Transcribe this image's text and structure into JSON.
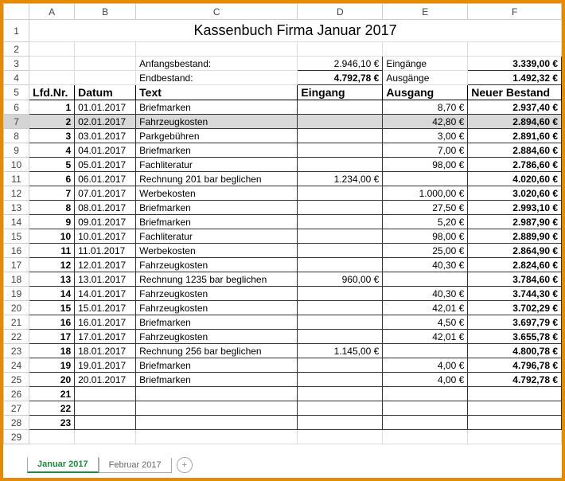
{
  "columns": [
    "A",
    "B",
    "C",
    "D",
    "E",
    "F"
  ],
  "title": "Kassenbuch Firma Januar 2017",
  "summary": {
    "anfangsbestand_label": "Anfangsbestand:",
    "anfangsbestand_value": "2.946,10 €",
    "eingaenge_label": "Eingänge",
    "eingaenge_value": "3.339,00 €",
    "endbestand_label": "Endbestand:",
    "endbestand_value": "4.792,78 €",
    "ausgaenge_label": "Ausgänge",
    "ausgaenge_value": "1.492,32 €"
  },
  "headers": {
    "lfdnr": "Lfd.Nr.",
    "datum": "Datum",
    "text": "Text",
    "eingang": "Eingang",
    "ausgang": "Ausgang",
    "bestand": "Neuer Bestand"
  },
  "rows": [
    {
      "n": "1",
      "d": "01.01.2017",
      "t": "Briefmarken",
      "e": "",
      "a": "8,70 €",
      "b": "2.937,40 €"
    },
    {
      "n": "2",
      "d": "02.01.2017",
      "t": "Fahrzeugkosten",
      "e": "",
      "a": "42,80 €",
      "b": "2.894,60 €"
    },
    {
      "n": "3",
      "d": "03.01.2017",
      "t": "Parkgebühren",
      "e": "",
      "a": "3,00 €",
      "b": "2.891,60 €"
    },
    {
      "n": "4",
      "d": "04.01.2017",
      "t": "Briefmarken",
      "e": "",
      "a": "7,00 €",
      "b": "2.884,60 €"
    },
    {
      "n": "5",
      "d": "05.01.2017",
      "t": "Fachliteratur",
      "e": "",
      "a": "98,00 €",
      "b": "2.786,60 €"
    },
    {
      "n": "6",
      "d": "06.01.2017",
      "t": "Rechnung 201 bar beglichen",
      "e": "1.234,00 €",
      "a": "",
      "b": "4.020,60 €"
    },
    {
      "n": "7",
      "d": "07.01.2017",
      "t": "Werbekosten",
      "e": "",
      "a": "1.000,00 €",
      "b": "3.020,60 €"
    },
    {
      "n": "8",
      "d": "08.01.2017",
      "t": "Briefmarken",
      "e": "",
      "a": "27,50 €",
      "b": "2.993,10 €"
    },
    {
      "n": "9",
      "d": "09.01.2017",
      "t": "Briefmarken",
      "e": "",
      "a": "5,20 €",
      "b": "2.987,90 €"
    },
    {
      "n": "10",
      "d": "10.01.2017",
      "t": "Fachliteratur",
      "e": "",
      "a": "98,00 €",
      "b": "2.889,90 €"
    },
    {
      "n": "11",
      "d": "11.01.2017",
      "t": "Werbekosten",
      "e": "",
      "a": "25,00 €",
      "b": "2.864,90 €"
    },
    {
      "n": "12",
      "d": "12.01.2017",
      "t": "Fahrzeugkosten",
      "e": "",
      "a": "40,30 €",
      "b": "2.824,60 €"
    },
    {
      "n": "13",
      "d": "13.01.2017",
      "t": "Rechnung 1235 bar beglichen",
      "e": "960,00 €",
      "a": "",
      "b": "3.784,60 €"
    },
    {
      "n": "14",
      "d": "14.01.2017",
      "t": "Fahrzeugkosten",
      "e": "",
      "a": "40,30 €",
      "b": "3.744,30 €"
    },
    {
      "n": "15",
      "d": "15.01.2017",
      "t": "Fahrzeugkosten",
      "e": "",
      "a": "42,01 €",
      "b": "3.702,29 €"
    },
    {
      "n": "16",
      "d": "16.01.2017",
      "t": "Briefmarken",
      "e": "",
      "a": "4,50 €",
      "b": "3.697,79 €"
    },
    {
      "n": "17",
      "d": "17.01.2017",
      "t": "Fahrzeugkosten",
      "e": "",
      "a": "42,01 €",
      "b": "3.655,78 €"
    },
    {
      "n": "18",
      "d": "18.01.2017",
      "t": "Rechnung 256 bar beglichen",
      "e": "1.145,00 €",
      "a": "",
      "b": "4.800,78 €"
    },
    {
      "n": "19",
      "d": "19.01.2017",
      "t": "Briefmarken",
      "e": "",
      "a": "4,00 €",
      "b": "4.796,78 €"
    },
    {
      "n": "20",
      "d": "20.01.2017",
      "t": "Briefmarken",
      "e": "",
      "a": "4,00 €",
      "b": "4.792,78 €"
    },
    {
      "n": "21",
      "d": "",
      "t": "",
      "e": "",
      "a": "",
      "b": ""
    },
    {
      "n": "22",
      "d": "",
      "t": "",
      "e": "",
      "a": "",
      "b": ""
    },
    {
      "n": "23",
      "d": "",
      "t": "",
      "e": "",
      "a": "",
      "b": ""
    }
  ],
  "blank_rows_start": 29,
  "tabs": {
    "active": "Januar 2017",
    "inactive": "Februar 2017",
    "add": "+"
  },
  "selected_row": 7
}
